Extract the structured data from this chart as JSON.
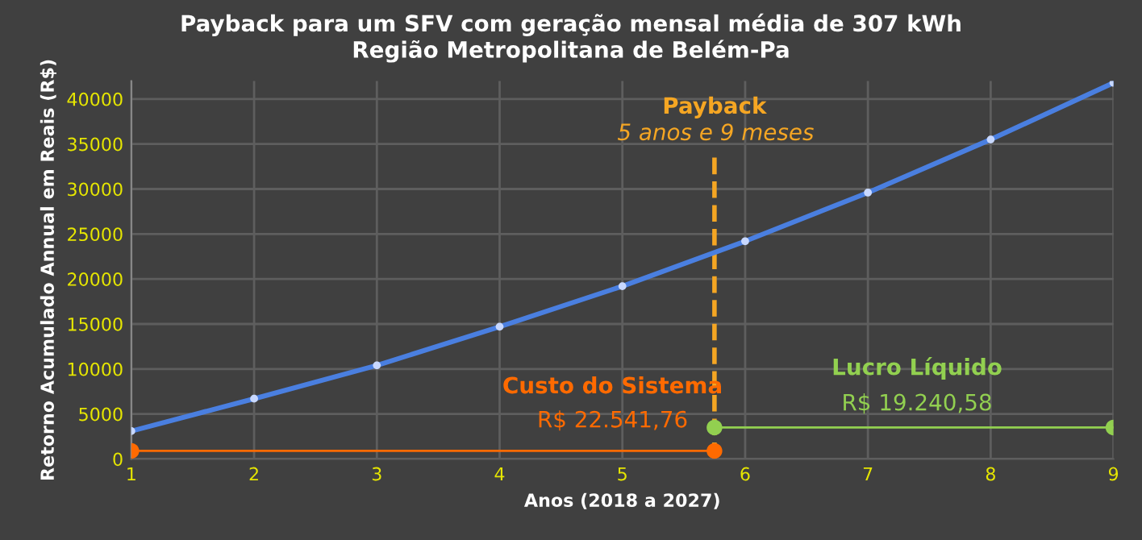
{
  "chart_data": {
    "type": "line",
    "title": "Payback para um SFV com geração mensal média de 307 kWh\nRegião Metropolitana de Belém-Pa",
    "xlabel": "Anos (2018 a 2027)",
    "ylabel": "Retorno Acumulado Annual em Reais (R$)",
    "series": [
      {
        "color": "#4a7fe0",
        "x": [
          1,
          2,
          3,
          4,
          5,
          6,
          7,
          8,
          9
        ],
        "values": [
          3100,
          6700,
          10400,
          14700,
          19200,
          24200,
          29600,
          35500,
          41800
        ],
        "marker": "circle"
      },
      {
        "color": "#ff6a00",
        "x": [
          1,
          5.75
        ],
        "values": [
          900,
          900
        ],
        "marker": "circle"
      },
      {
        "color": "#92d050",
        "x": [
          5.75,
          9
        ],
        "values": [
          3500,
          3500
        ],
        "marker": "circle"
      }
    ],
    "ref_lines": [
      {
        "axis": "x",
        "value": 5.75,
        "label": "Payback",
        "color": "#f5a623",
        "line_style": "dashed"
      }
    ],
    "annotations": [
      "5 anos e 9 meses",
      "Custo do Sistema",
      "R$ 22.541,76",
      "Lucro Líquido",
      "R$ 19.240,58"
    ],
    "xlim": [
      1,
      9
    ],
    "xticks": [
      1,
      2,
      3,
      4,
      5,
      6,
      7,
      8,
      9
    ],
    "ylim": [
      0,
      42000
    ],
    "yticks": [
      0,
      5000,
      10000,
      15000,
      20000,
      25000,
      30000,
      35000,
      40000
    ],
    "grid": true
  }
}
